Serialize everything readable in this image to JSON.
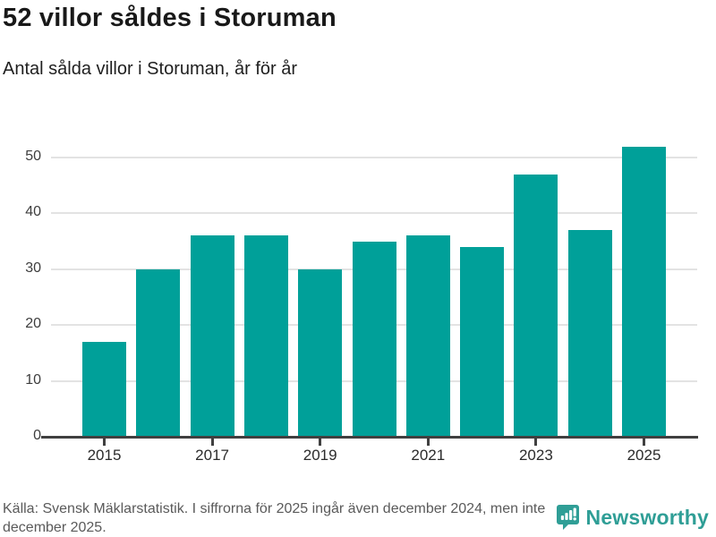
{
  "header": {
    "title": "52 villor såldes i Storuman",
    "subtitle": "Antal sålda villor i Storuman, år för år"
  },
  "chart_data": {
    "type": "bar",
    "title": "52 villor såldes i Storuman",
    "subtitle": "Antal sålda villor i Storuman, år för år",
    "categories": [
      "2015",
      "2016",
      "2017",
      "2018",
      "2019",
      "2020",
      "2021",
      "2022",
      "2023",
      "2024",
      "2025"
    ],
    "values": [
      17,
      30,
      36,
      36,
      30,
      35,
      36,
      34,
      47,
      37,
      52
    ],
    "xlabel": "",
    "ylabel": "",
    "ylim": [
      0,
      52
    ],
    "y_ticks": [
      0,
      10,
      20,
      30,
      40,
      50
    ],
    "x_tick_labels": [
      "2015",
      "2017",
      "2019",
      "2021",
      "2023",
      "2025"
    ],
    "grid": "horizontal",
    "legend": "none",
    "bar_color": "#00a099"
  },
  "footer": {
    "source": "Källa: Svensk Mäklarstatistik. I siffrorna för 2025 ingår även december 2024, men inte december 2025.",
    "brand": "Newsworthy"
  },
  "colors": {
    "bar": "#00a099",
    "brand_teal": "#2f9e96",
    "grid": "#e3e3e3",
    "axis": "#404040",
    "title_text": "#191919",
    "muted_text": "#5a5a5a"
  }
}
